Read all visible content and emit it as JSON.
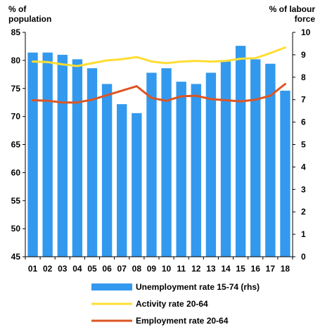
{
  "chart_data": {
    "type": "bar+line",
    "categories": [
      "01",
      "02",
      "03",
      "04",
      "05",
      "06",
      "07",
      "08",
      "09",
      "10",
      "11",
      "12",
      "13",
      "14",
      "15",
      "16",
      "17",
      "18"
    ],
    "left_axis": {
      "title_lines": [
        "% of",
        "population"
      ],
      "min": 45,
      "max": 85,
      "step": 5
    },
    "right_axis": {
      "title_lines": [
        "% of labour",
        "force"
      ],
      "min": 0,
      "max": 10,
      "step": 1
    },
    "series": [
      {
        "name": "Unemployment rate 15-74 (rhs)",
        "type": "bar",
        "axis": "right",
        "color": "#3399ee",
        "values": [
          9.1,
          9.1,
          9.0,
          8.8,
          8.4,
          7.7,
          6.8,
          6.4,
          8.2,
          8.4,
          7.8,
          7.7,
          8.2,
          8.7,
          9.4,
          8.8,
          8.6,
          7.4
        ]
      },
      {
        "name": "Activity rate 20-64",
        "type": "line",
        "axis": "left",
        "color": "#ffdd33",
        "values": [
          79.8,
          79.7,
          79.3,
          79.0,
          79.5,
          80.0,
          80.2,
          80.6,
          79.8,
          79.5,
          79.8,
          79.9,
          79.8,
          79.9,
          80.3,
          80.4,
          81.3,
          82.3
        ]
      },
      {
        "name": "Employment rate 20-64",
        "type": "line",
        "axis": "left",
        "color": "#dd5522",
        "values": [
          72.9,
          72.8,
          72.5,
          72.5,
          73.0,
          73.8,
          74.6,
          75.4,
          73.3,
          72.8,
          73.6,
          73.7,
          73.1,
          72.9,
          72.7,
          73.0,
          73.7,
          75.8
        ]
      }
    ],
    "grid": false,
    "legend_position": "bottom"
  }
}
